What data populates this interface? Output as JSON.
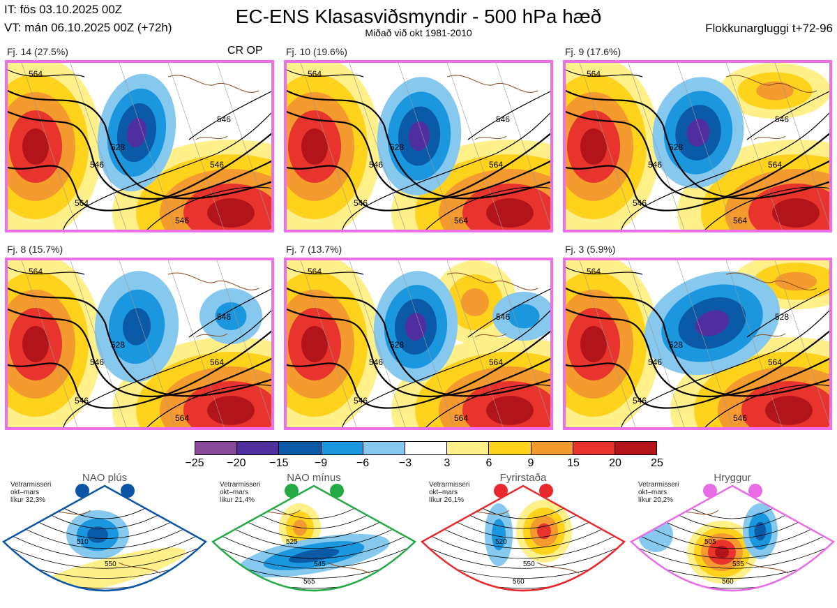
{
  "header": {
    "it_line": "IT: fös 03.10.2025 00Z",
    "vt_line": "VT: mán 06.10.2025 00Z  (+72h)",
    "title": "EC-ENS Klasasviðsmyndir - 500 hPa hæð",
    "subtitle": "Miðað við okt 1981-2010",
    "window_label": "Flokkunargluggi t+72-96"
  },
  "panels": [
    {
      "label": "Fj. 14 (27.5%)",
      "tag": "CR OP",
      "contours": [
        "528",
        "546",
        "564",
        "546",
        "564",
        "546",
        "546"
      ]
    },
    {
      "label": "Fj. 10 (19.6%)",
      "tag": "",
      "contours": [
        "528",
        "546",
        "546",
        "564",
        "564",
        "546",
        "564"
      ]
    },
    {
      "label": "Fj. 9 (17.6%)",
      "tag": "",
      "contours": [
        "528",
        "546",
        "546",
        "564",
        "564",
        "546",
        "564"
      ]
    },
    {
      "label": "Fj. 8 (15.7%)",
      "tag": "",
      "contours": [
        "528",
        "546",
        "546",
        "564",
        "564",
        "546",
        "564"
      ]
    },
    {
      "label": "Fj. 7 (13.7%)",
      "tag": "",
      "contours": [
        "528",
        "546",
        "546",
        "564",
        "564",
        "546",
        "564"
      ]
    },
    {
      "label": "Fj. 3 (5.9%)",
      "tag": "",
      "contours": [
        "528",
        "546",
        "546",
        "564",
        "564",
        "528",
        "546"
      ]
    }
  ],
  "colorbar": {
    "colors": [
      "#8a4a9a",
      "#4f2f9e",
      "#0b5aa8",
      "#1a97de",
      "#86c8ee",
      "#ffffff",
      "#fff08a",
      "#ffd21c",
      "#f59a2e",
      "#e8342c",
      "#b3141a"
    ],
    "ticks": [
      "−25",
      "−20",
      "−15",
      "−9",
      "−6",
      "−3",
      "3",
      "6",
      "9",
      "15",
      "20",
      "25"
    ]
  },
  "regimes": [
    {
      "name": "NAO plús",
      "season": "Vetrarmisseri",
      "months": "okt–mars",
      "likur": "líkur 32,3%",
      "color": "#0a55a5",
      "contours": [
        "510",
        "550"
      ]
    },
    {
      "name": "NAO mínus",
      "season": "Vetrarmisseri",
      "months": "okt–mars",
      "likur": "líkur 21,4%",
      "color": "#22aa44",
      "contours": [
        "525",
        "545",
        "565"
      ]
    },
    {
      "name": "Fyrirstaða",
      "season": "Vetrarmisseri",
      "months": "okt–mars",
      "likur": "líkur 26,1%",
      "color": "#e8282c",
      "contours": [
        "520",
        "550",
        "560"
      ]
    },
    {
      "name": "Hryggur",
      "season": "Vetrarmisseri",
      "months": "okt–mars",
      "likur": "líkur 20,2%",
      "color": "#e86ce6",
      "contours": [
        "505",
        "535",
        "560"
      ]
    }
  ]
}
